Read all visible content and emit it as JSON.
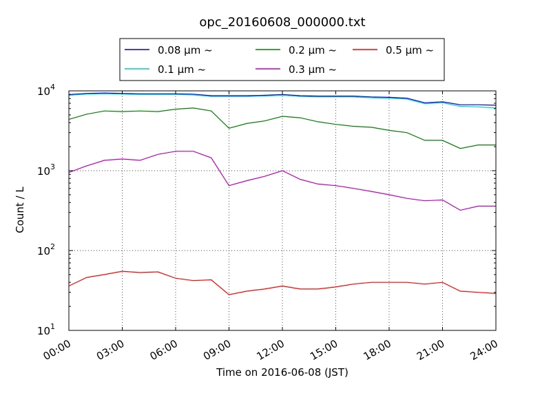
{
  "chart_data": {
    "type": "line",
    "title": "opc_20160608_000000.txt",
    "xlabel": "Time on 2016-06-08 (JST)",
    "ylabel": "Count / L",
    "x_unit": "hours",
    "xlim": [
      0,
      24
    ],
    "ylim": [
      10,
      10000
    ],
    "yscale": "log",
    "grid": true,
    "legend_location": "top-center (above plot)",
    "x_ticks": [
      {
        "value": 0,
        "label": "00:00"
      },
      {
        "value": 3,
        "label": "03:00"
      },
      {
        "value": 6,
        "label": "06:00"
      },
      {
        "value": 9,
        "label": "09:00"
      },
      {
        "value": 12,
        "label": "12:00"
      },
      {
        "value": 15,
        "label": "15:00"
      },
      {
        "value": 18,
        "label": "18:00"
      },
      {
        "value": 21,
        "label": "21:00"
      },
      {
        "value": 24,
        "label": "24:00"
      }
    ],
    "y_ticks": [
      {
        "value": 10,
        "label_base": "10",
        "label_exp": "1"
      },
      {
        "value": 100,
        "label_base": "10",
        "label_exp": "2"
      },
      {
        "value": 1000,
        "label_base": "10",
        "label_exp": "3"
      },
      {
        "value": 10000,
        "label_base": "10",
        "label_exp": "4"
      }
    ],
    "x": [
      0,
      1,
      2,
      3,
      4,
      5,
      6,
      7,
      8,
      9,
      10,
      11,
      12,
      13,
      14,
      15,
      16,
      17,
      18,
      19,
      20,
      21,
      22,
      23,
      24
    ],
    "series": [
      {
        "name": "0.08 μm ~",
        "color": "#0000cc",
        "values": [
          9000,
          9300,
          9400,
          9300,
          9200,
          9200,
          9200,
          9100,
          8700,
          8700,
          8700,
          8800,
          9000,
          8700,
          8600,
          8600,
          8600,
          8400,
          8300,
          8100,
          7100,
          7300,
          6700,
          6700,
          6600
        ]
      },
      {
        "name": "0.1 μm ~",
        "color": "#00cccc",
        "values": [
          8800,
          9100,
          9200,
          9100,
          9000,
          9000,
          9000,
          8900,
          8500,
          8500,
          8500,
          8600,
          8800,
          8500,
          8400,
          8400,
          8400,
          8200,
          8100,
          7900,
          6900,
          7100,
          6400,
          6300,
          6100
        ]
      },
      {
        "name": "0.2 μm ~",
        "color": "#008000",
        "values": [
          4400,
          5100,
          5600,
          5500,
          5600,
          5500,
          5900,
          6100,
          5600,
          3400,
          3900,
          4200,
          4800,
          4600,
          4100,
          3800,
          3600,
          3500,
          3200,
          3000,
          2400,
          2400,
          1900,
          2100,
          2100
        ]
      },
      {
        "name": "0.3 μm ~",
        "color": "#bf00bf",
        "values": [
          950,
          1150,
          1350,
          1400,
          1350,
          1600,
          1750,
          1750,
          1450,
          650,
          750,
          850,
          1000,
          780,
          680,
          650,
          600,
          550,
          500,
          450,
          420,
          430,
          320,
          360,
          360
        ]
      },
      {
        "name": "0.5 μm ~",
        "color": "#ff0000",
        "values": [
          36,
          46,
          50,
          55,
          53,
          54,
          45,
          42,
          43,
          28,
          31,
          33,
          36,
          33,
          33,
          35,
          38,
          40,
          40,
          40,
          38,
          40,
          31,
          30,
          29
        ]
      }
    ],
    "legend": {
      "columns": [
        [
          "0.08 μm ~",
          "0.1 μm ~"
        ],
        [
          "0.2 μm ~",
          "0.3 μm ~"
        ],
        [
          "0.5 μm ~"
        ]
      ]
    }
  }
}
